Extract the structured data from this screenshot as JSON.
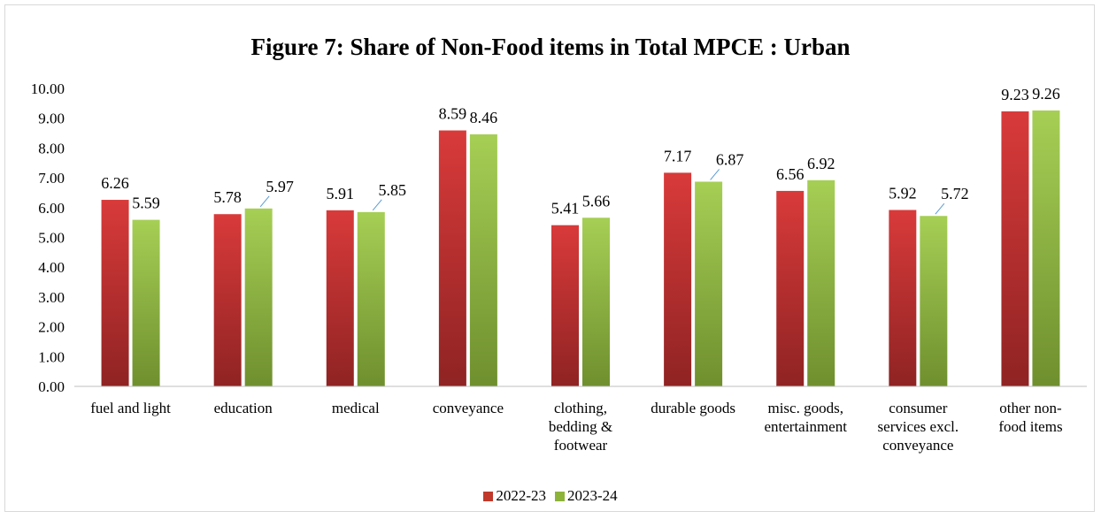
{
  "chart_data": {
    "type": "bar",
    "title": "Figure 7: Share of Non-Food items in Total MPCE : Urban",
    "categories": [
      [
        "fuel and light"
      ],
      [
        "education"
      ],
      [
        "medical"
      ],
      [
        "conveyance"
      ],
      [
        "clothing,",
        "bedding &",
        "footwear"
      ],
      [
        "durable goods"
      ],
      [
        "misc. goods,",
        "entertainment"
      ],
      [
        "consumer",
        "services excl.",
        "conveyance"
      ],
      [
        "other non-",
        "food items"
      ]
    ],
    "series": [
      {
        "name": "2022-23",
        "color": "#c0392b",
        "values": [
          6.26,
          5.78,
          5.91,
          8.59,
          5.41,
          7.17,
          6.56,
          5.92,
          9.23
        ],
        "labels": [
          "6.26",
          "5.78",
          "5.91",
          "8.59",
          "5.41",
          "7.17",
          "6.56",
          "5.92",
          "9.23"
        ]
      },
      {
        "name": "2023-24",
        "color": "#8db33a",
        "values": [
          5.59,
          5.97,
          5.85,
          8.46,
          5.66,
          6.87,
          6.92,
          5.72,
          9.26
        ],
        "labels": [
          "5.59",
          "5.97",
          "5.85",
          "8.46",
          "5.66",
          "6.87",
          "6.92",
          "5.72",
          "9.26"
        ]
      }
    ],
    "y_ticks": [
      "0.00",
      "1.00",
      "2.00",
      "3.00",
      "4.00",
      "5.00",
      "6.00",
      "7.00",
      "8.00",
      "9.00",
      "10.00"
    ],
    "ylim": [
      0,
      10
    ],
    "xlabel": "",
    "ylabel": "",
    "grid": false,
    "legend_position": "bottom"
  }
}
